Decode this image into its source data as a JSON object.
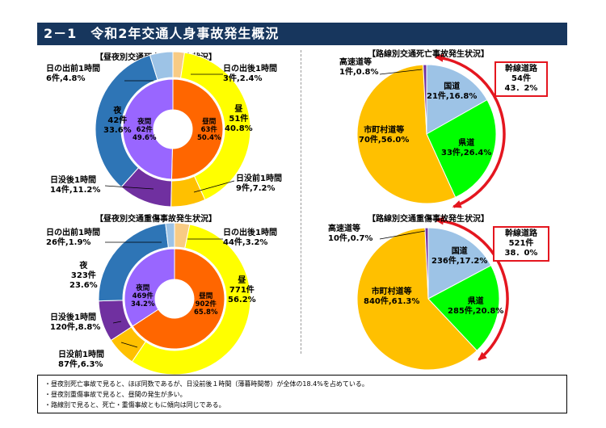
{
  "title": "2－1　令和2年交通人身事故発生概況",
  "colors": {
    "yellow": "#ffff00",
    "gold": "#ffc000",
    "orange": "#ff6600",
    "purple": "#9966ff",
    "darkpurple": "#7030a0",
    "blue": "#2e75b6",
    "lightblue": "#9dc3e6",
    "tan": "#f8cb84",
    "green": "#00ff00",
    "navy": "#17365d",
    "red": "#e4161f"
  },
  "charts": {
    "fatal_daynight": {
      "title": "【昼夜別交通死亡事故発生状況】",
      "labels": {
        "dawn_before": [
          "日の出前1時間",
          "6件,4.8%"
        ],
        "dawn_after": [
          "日の出後1時間",
          "3件,2.4%"
        ],
        "day": [
          "昼",
          "51件",
          "40.8%"
        ],
        "dusk_before": [
          "日没前1時間",
          "9件,7.2%"
        ],
        "dusk_after": [
          "日没後1時間",
          "14件,11.2%"
        ],
        "night": [
          "夜",
          "42件",
          "33.6%"
        ],
        "inner_day": [
          "昼間",
          "63件",
          "50.4%"
        ],
        "inner_night": [
          "夜間",
          "62件",
          "49.6%"
        ]
      }
    },
    "injury_daynight": {
      "title": "【昼夜別交通重傷事故発生状況】",
      "labels": {
        "dawn_before": [
          "日の出前1時間",
          "26件,1.9%"
        ],
        "dawn_after": [
          "日の出後1時間",
          "44件,3.2%"
        ],
        "day": [
          "昼",
          "771件",
          "56.2%"
        ],
        "dusk_before": [
          "日没前1時間",
          "87件,6.3%"
        ],
        "dusk_after": [
          "日没後1時間",
          "120件,8.8%"
        ],
        "night": [
          "夜",
          "323件",
          "23.6%"
        ],
        "inner_day": [
          "昼間",
          "902件",
          "65.8%"
        ],
        "inner_night": [
          "夜間",
          "469件",
          "34.2%"
        ]
      }
    },
    "fatal_route": {
      "title": "【路線別交通死亡事故発生状況】",
      "labels": {
        "expressway": [
          "高速道等",
          "1件,0.8%"
        ],
        "national": [
          "国道",
          "21件,16.8%"
        ],
        "prefectural": [
          "県道",
          "33件,26.4%"
        ],
        "municipal": [
          "市町村道等",
          "70件,56.0%"
        ]
      },
      "trunk": [
        "幹線道路",
        "54件",
        "43．2%"
      ]
    },
    "injury_route": {
      "title": "【路線別交通重傷事故発生状況】",
      "labels": {
        "expressway": [
          "高速道等",
          "10件,0.7%"
        ],
        "national": [
          "国道",
          "236件,17.2%"
        ],
        "prefectural": [
          "県道",
          "285件,20.8%"
        ],
        "municipal": [
          "市町村道等",
          "840件,61.3%"
        ]
      },
      "trunk": [
        "幹線道路",
        "521件",
        "38．0%"
      ]
    }
  },
  "chart_data": [
    {
      "type": "pie",
      "title": "【昼夜別交通死亡事故発生状況】",
      "outer": [
        {
          "label": "日の出後1時間",
          "value": 3,
          "percent": 2.4,
          "color": "#f8cb84"
        },
        {
          "label": "昼",
          "value": 51,
          "percent": 40.8,
          "color": "#ffff00"
        },
        {
          "label": "日没前1時間",
          "value": 9,
          "percent": 7.2,
          "color": "#ffc000"
        },
        {
          "label": "日没後1時間",
          "value": 14,
          "percent": 11.2,
          "color": "#7030a0"
        },
        {
          "label": "夜",
          "value": 42,
          "percent": 33.6,
          "color": "#2e75b6"
        },
        {
          "label": "日の出前1時間",
          "value": 6,
          "percent": 4.8,
          "color": "#9dc3e6"
        }
      ],
      "inner": [
        {
          "label": "昼間",
          "value": 63,
          "percent": 50.4,
          "color": "#ff6600"
        },
        {
          "label": "夜間",
          "value": 62,
          "percent": 49.6,
          "color": "#9966ff"
        }
      ]
    },
    {
      "type": "pie",
      "title": "【昼夜別交通重傷事故発生状況】",
      "outer": [
        {
          "label": "日の出後1時間",
          "value": 44,
          "percent": 3.2,
          "color": "#f8cb84"
        },
        {
          "label": "昼",
          "value": 771,
          "percent": 56.2,
          "color": "#ffff00"
        },
        {
          "label": "日没前1時間",
          "value": 87,
          "percent": 6.3,
          "color": "#ffc000"
        },
        {
          "label": "日没後1時間",
          "value": 120,
          "percent": 8.8,
          "color": "#7030a0"
        },
        {
          "label": "夜",
          "value": 323,
          "percent": 23.6,
          "color": "#2e75b6"
        },
        {
          "label": "日の出前1時間",
          "value": 26,
          "percent": 1.9,
          "color": "#9dc3e6"
        }
      ],
      "inner": [
        {
          "label": "昼間",
          "value": 902,
          "percent": 65.8,
          "color": "#ff6600"
        },
        {
          "label": "夜間",
          "value": 469,
          "percent": 34.2,
          "color": "#9966ff"
        }
      ]
    },
    {
      "type": "pie",
      "title": "【路線別交通死亡事故発生状況】",
      "slices": [
        {
          "label": "国道",
          "value": 21,
          "percent": 16.8,
          "color": "#9dc3e6"
        },
        {
          "label": "県道",
          "value": 33,
          "percent": 26.4,
          "color": "#00ff00"
        },
        {
          "label": "市町村道等",
          "value": 70,
          "percent": 56.0,
          "color": "#ffc000"
        },
        {
          "label": "高速道等",
          "value": 1,
          "percent": 0.8,
          "color": "#7030a0"
        }
      ],
      "annotation": {
        "label": "幹線道路",
        "value": 54,
        "percent": 43.2
      }
    },
    {
      "type": "pie",
      "title": "【路線別交通重傷事故発生状況】",
      "slices": [
        {
          "label": "国道",
          "value": 236,
          "percent": 17.2,
          "color": "#9dc3e6"
        },
        {
          "label": "県道",
          "value": 285,
          "percent": 20.8,
          "color": "#00ff00"
        },
        {
          "label": "市町村道等",
          "value": 840,
          "percent": 61.3,
          "color": "#ffc000"
        },
        {
          "label": "高速道等",
          "value": 10,
          "percent": 0.7,
          "color": "#7030a0"
        }
      ],
      "annotation": {
        "label": "幹線道路",
        "value": 521,
        "percent": 38.0
      }
    }
  ],
  "notes": [
    "・昼夜別死亡事故で見ると、ほぼ同数であるが、日没前後１時間（薄暮時間帯）が全体の18.4%を占めている。",
    "・昼夜別重傷事故で見ると、昼間の発生が多い。",
    "・路線別で見ると、死亡・重傷事故ともに傾向は同じである。"
  ]
}
